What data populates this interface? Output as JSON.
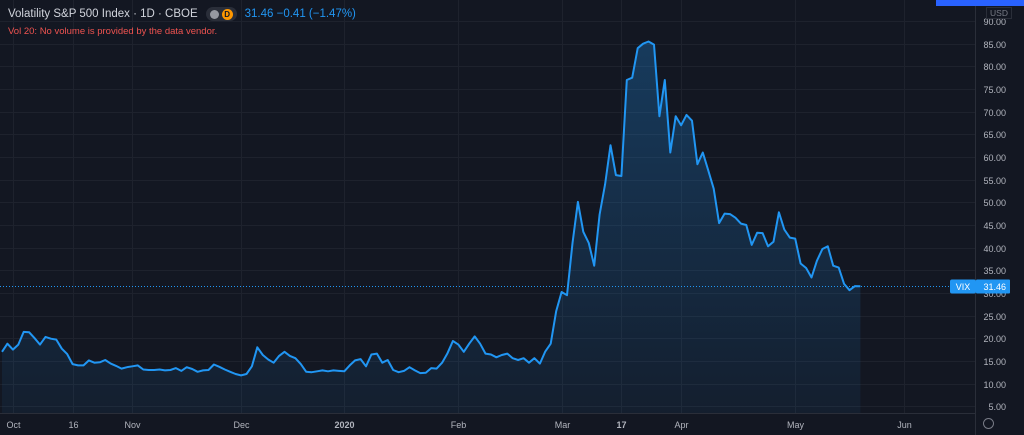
{
  "header": {
    "title": "Volatility S&P 500 Index · 1D · CBOE",
    "badge_letter": "D",
    "quote": "31.46  −0.41 (−1.47%)",
    "note": "Vol 20: No volume is provided by the data vendor.",
    "currency": "USD"
  },
  "colors": {
    "background": "#131722",
    "line": "#2196f3",
    "grid": "#1e222d",
    "axis_text": "#b2b5be",
    "note": "#ef5350",
    "accent": "#2962ff"
  },
  "icons": [
    "eye-icon",
    "gear-icon"
  ],
  "chart_data": {
    "type": "area",
    "series_label": "VIX",
    "last_value": 31.46,
    "last_label": "31.46",
    "ylim": [
      3.5,
      92
    ],
    "yticks": [
      5,
      10,
      15,
      20,
      25,
      30,
      35,
      40,
      45,
      50,
      55,
      60,
      65,
      70,
      75,
      80,
      85,
      90
    ],
    "ytick_labels": [
      "5.00",
      "10.00",
      "15.00",
      "20.00",
      "25.00",
      "30.00",
      "35.00",
      "40.00",
      "45.00",
      "50.00",
      "55.00",
      "60.00",
      "65.00",
      "70.00",
      "75.00",
      "80.00",
      "85.00",
      "90.00"
    ],
    "xlim": [
      0,
      164
    ],
    "xticks": [
      {
        "label": "Oct",
        "index": 2
      },
      {
        "label": "16",
        "index": 13
      },
      {
        "label": "Nov",
        "index": 24
      },
      {
        "label": "Dec",
        "index": 44
      },
      {
        "label": "2020",
        "index": 63
      },
      {
        "label": "Feb",
        "index": 84
      },
      {
        "label": "Mar",
        "index": 103
      },
      {
        "label": "17",
        "index": 114
      },
      {
        "label": "Apr",
        "index": 125
      },
      {
        "label": "May",
        "index": 146
      },
      {
        "label": "Jun",
        "index": 166
      }
    ],
    "values": [
      17.0,
      18.8,
      17.5,
      18.6,
      21.4,
      21.3,
      20.0,
      18.6,
      20.3,
      19.9,
      19.7,
      17.7,
      16.5,
      14.3,
      14.0,
      14.0,
      15.1,
      14.6,
      14.7,
      15.2,
      14.4,
      13.9,
      13.3,
      13.6,
      13.8,
      14.0,
      13.1,
      13.0,
      13.0,
      13.1,
      12.9,
      13.0,
      13.4,
      12.8,
      13.6,
      13.2,
      12.6,
      12.9,
      13.0,
      14.2,
      13.7,
      13.1,
      12.6,
      12.1,
      11.8,
      12.1,
      13.8,
      18.0,
      16.3,
      15.3,
      14.6,
      16.1,
      17.0,
      16.1,
      15.6,
      14.3,
      12.6,
      12.5,
      12.7,
      12.9,
      12.7,
      12.9,
      12.8,
      12.7,
      14.0,
      15.1,
      15.4,
      13.8,
      16.4,
      16.6,
      14.6,
      15.2,
      13.0,
      12.5,
      12.8,
      13.6,
      12.9,
      12.3,
      12.4,
      13.4,
      13.3,
      14.6,
      16.7,
      19.4,
      18.6,
      17.0,
      18.8,
      20.4,
      18.8,
      16.6,
      16.4,
      15.8,
      16.3,
      16.6,
      15.6,
      15.2,
      15.6,
      14.6,
      15.6,
      14.4,
      17.1,
      18.8,
      26.0,
      30.2,
      29.5,
      41.0,
      50.1,
      43.5,
      41.0,
      36.0,
      47.3,
      54.0,
      62.6,
      56.0,
      55.8,
      77.0,
      77.5,
      84.0,
      85.0,
      85.5,
      84.8,
      69.0,
      77.0,
      61.0,
      69.0,
      67.0,
      69.3,
      68.0,
      58.4,
      61.0,
      57.0,
      53.0,
      45.4,
      47.5,
      47.4,
      46.6,
      45.3,
      45.0,
      40.6,
      43.3,
      43.2,
      40.3,
      41.3,
      47.8,
      44.0,
      42.2,
      42.0,
      36.5,
      35.5,
      33.4,
      37.1,
      39.7,
      40.3,
      36.0,
      35.6,
      32.0,
      30.6,
      31.5,
      31.46
    ]
  }
}
